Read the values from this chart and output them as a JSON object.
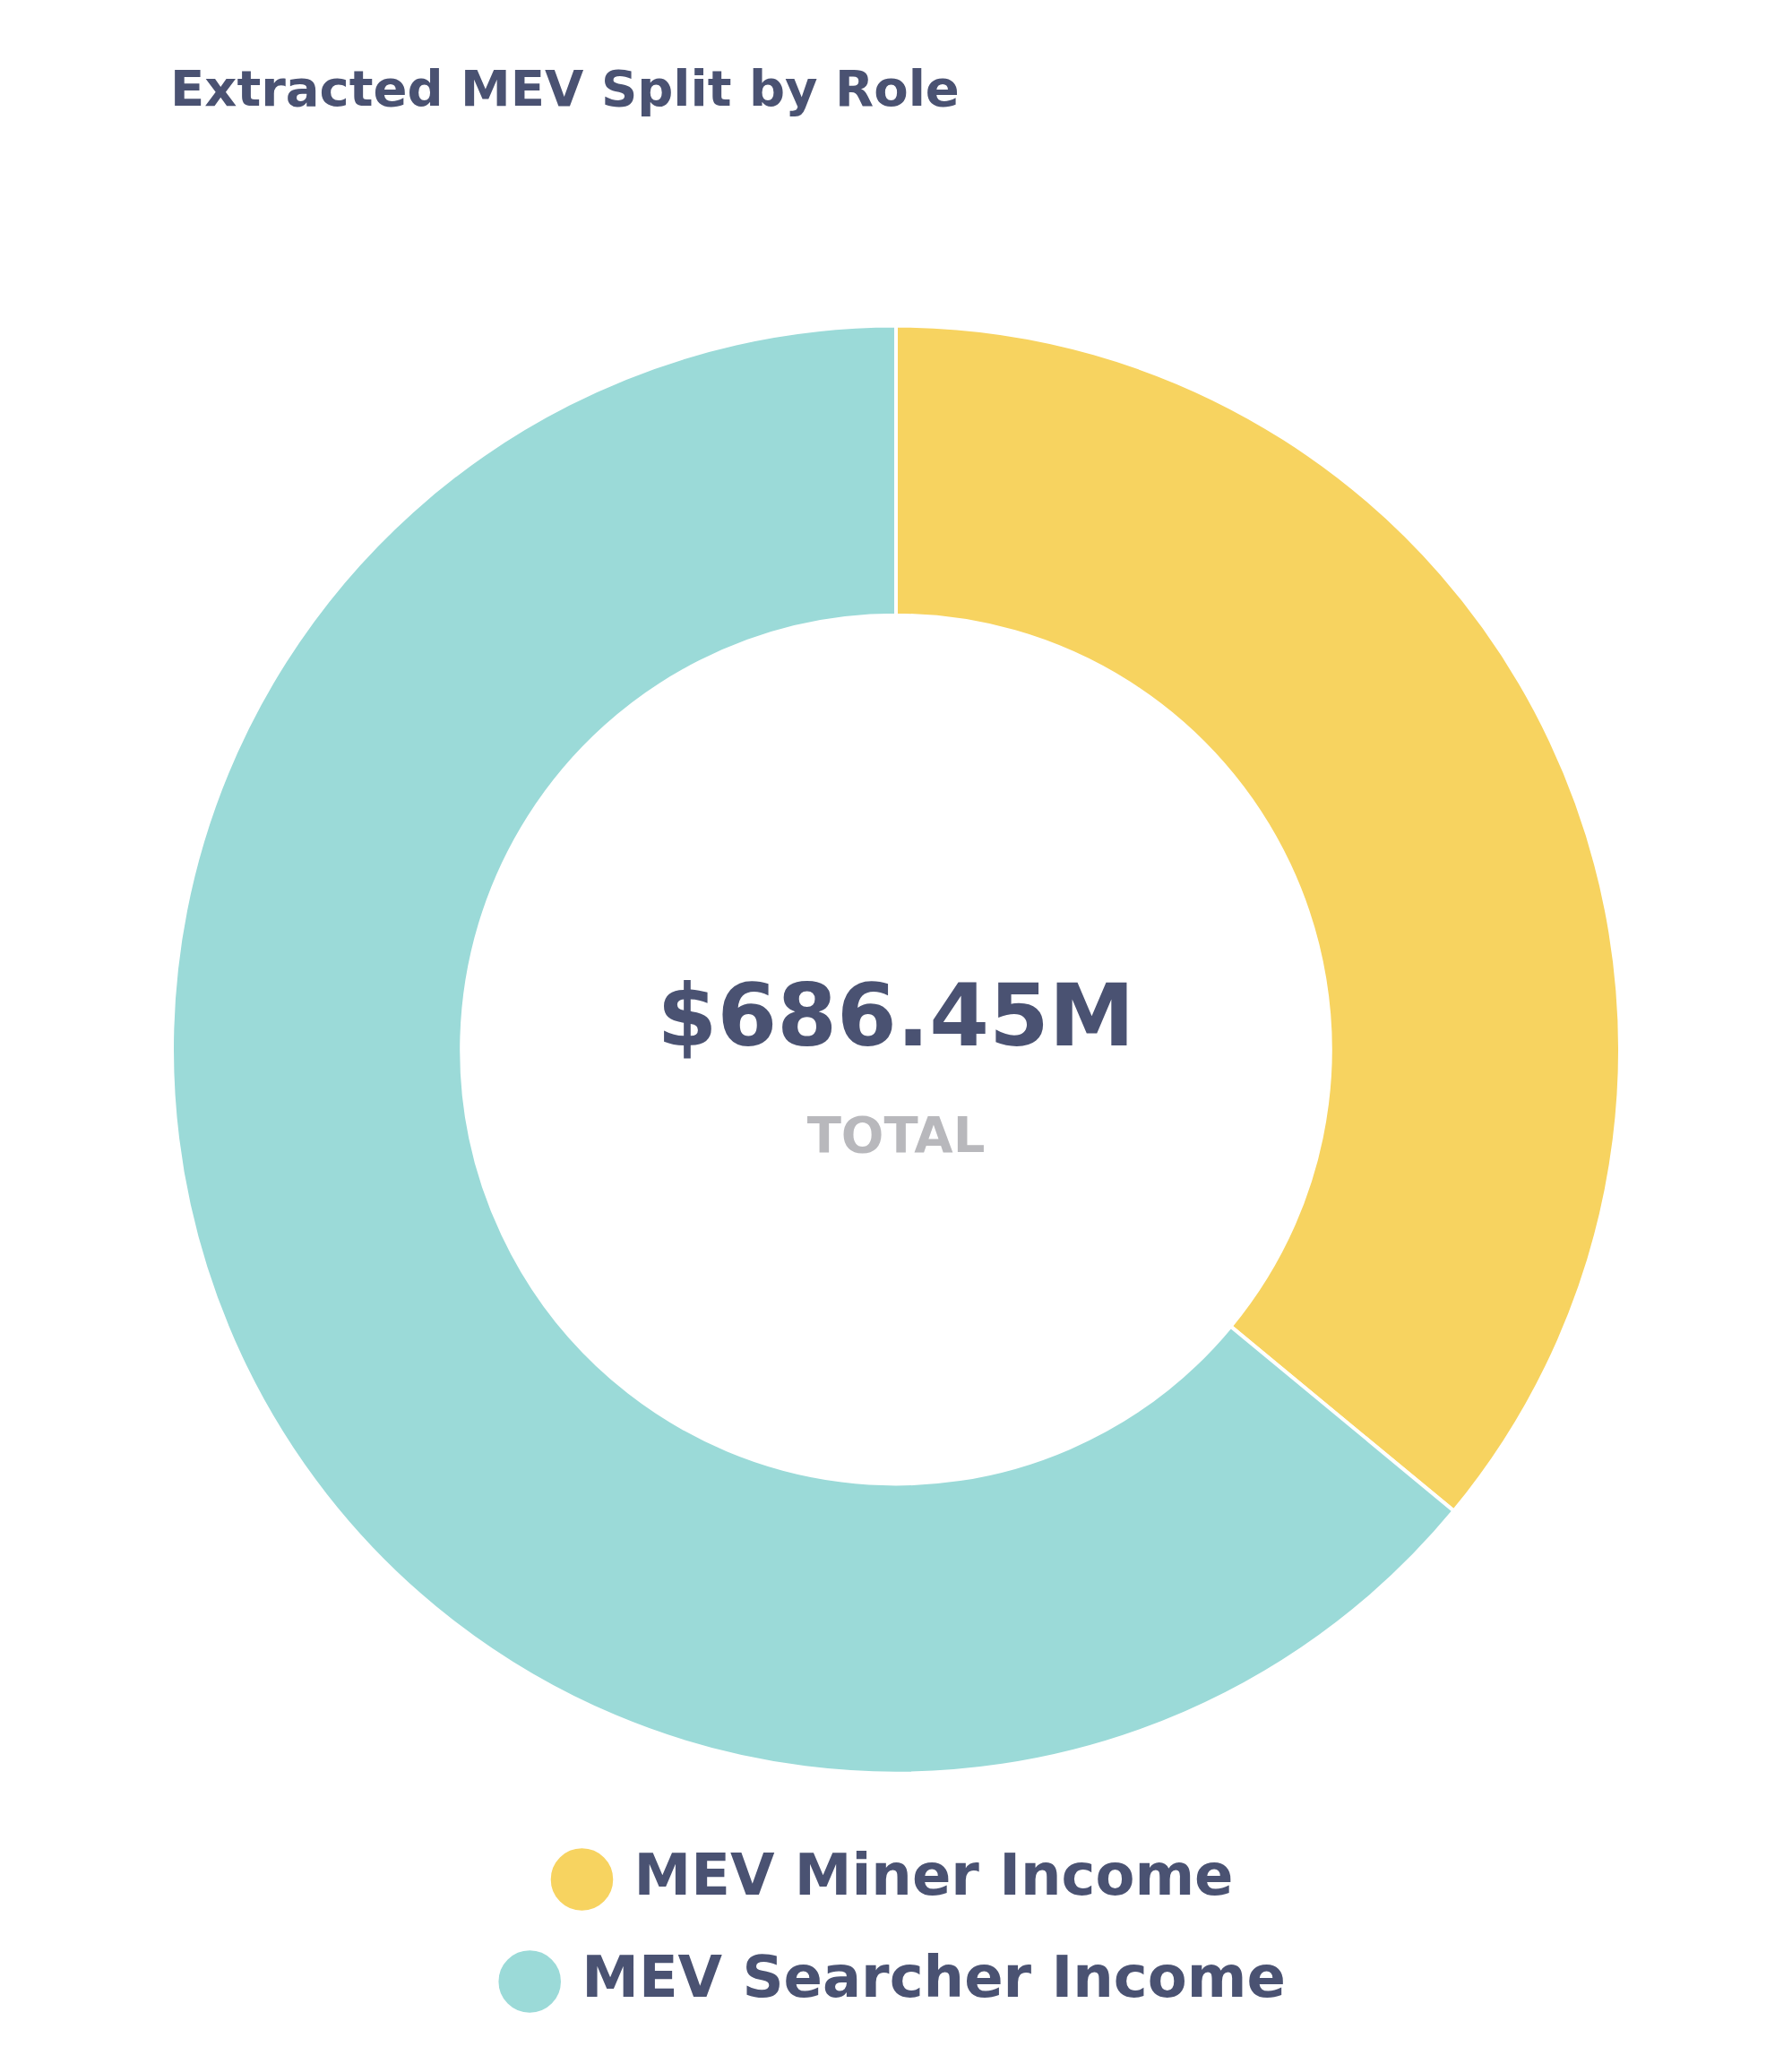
{
  "chart_data": {
    "type": "donut",
    "title": "Extracted MEV Split by Role",
    "categories": [
      "MEV Miner Income",
      "MEV Searcher Income"
    ],
    "values": [
      36,
      64
    ],
    "colors": [
      "#f7d360",
      "#9bdad8"
    ],
    "annotations": [
      "$686.45M",
      "TOTAL"
    ],
    "legend": "bottom"
  }
}
